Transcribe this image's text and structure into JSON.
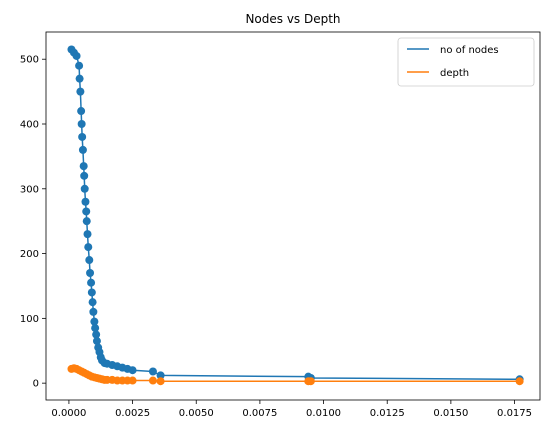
{
  "chart_data": {
    "type": "line",
    "title": "Nodes vs Depth",
    "xlabel": "",
    "ylabel": "",
    "xlim": [
      -0.0009,
      0.0185
    ],
    "ylim": [
      -26,
      542
    ],
    "xticks": [
      0.0,
      0.0025,
      0.005,
      0.0075,
      0.01,
      0.0125,
      0.015,
      0.0175
    ],
    "xtick_labels": [
      "0.0000",
      "0.0025",
      "0.0050",
      "0.0075",
      "0.0100",
      "0.0125",
      "0.0150",
      "0.0175"
    ],
    "yticks": [
      0,
      100,
      200,
      300,
      400,
      500
    ],
    "ytick_labels": [
      "0",
      "100",
      "200",
      "300",
      "400",
      "500"
    ],
    "grid": false,
    "legend_position": "top-right",
    "markers": true,
    "series": [
      {
        "name": "no of nodes",
        "color": "#1f77b4",
        "x": [
          0.0001,
          0.0002,
          0.0003,
          0.0004,
          0.00042,
          0.00045,
          0.00048,
          0.0005,
          0.00052,
          0.00055,
          0.00058,
          0.0006,
          0.00062,
          0.00065,
          0.00068,
          0.0007,
          0.00073,
          0.00076,
          0.0008,
          0.00083,
          0.00087,
          0.0009,
          0.00093,
          0.00096,
          0.001,
          0.00103,
          0.00107,
          0.0011,
          0.00115,
          0.0012,
          0.00125,
          0.0013,
          0.0014,
          0.0015,
          0.0017,
          0.0019,
          0.0021,
          0.0023,
          0.0025,
          0.0033,
          0.0036,
          0.0094,
          0.0095,
          0.0177
        ],
        "y": [
          515,
          510,
          505,
          490,
          470,
          450,
          420,
          400,
          380,
          360,
          335,
          320,
          300,
          280,
          265,
          250,
          230,
          210,
          190,
          170,
          155,
          140,
          125,
          110,
          95,
          85,
          75,
          65,
          55,
          48,
          40,
          35,
          31,
          30,
          28,
          26,
          24,
          22,
          20,
          18,
          12,
          10,
          8,
          6
        ]
      },
      {
        "name": "depth",
        "color": "#ff7f0e",
        "x": [
          0.0001,
          0.0002,
          0.0003,
          0.0004,
          0.0005,
          0.0006,
          0.0007,
          0.0008,
          0.0009,
          0.001,
          0.0011,
          0.0012,
          0.0013,
          0.0014,
          0.0015,
          0.0017,
          0.0019,
          0.0021,
          0.0023,
          0.0025,
          0.0033,
          0.0036,
          0.0094,
          0.0095,
          0.0177
        ],
        "y": [
          22,
          23,
          22,
          20,
          18,
          16,
          14,
          12,
          10,
          9,
          8,
          7,
          6,
          5,
          5,
          5,
          4,
          4,
          4,
          4,
          4,
          3,
          3,
          3,
          3
        ]
      }
    ]
  }
}
